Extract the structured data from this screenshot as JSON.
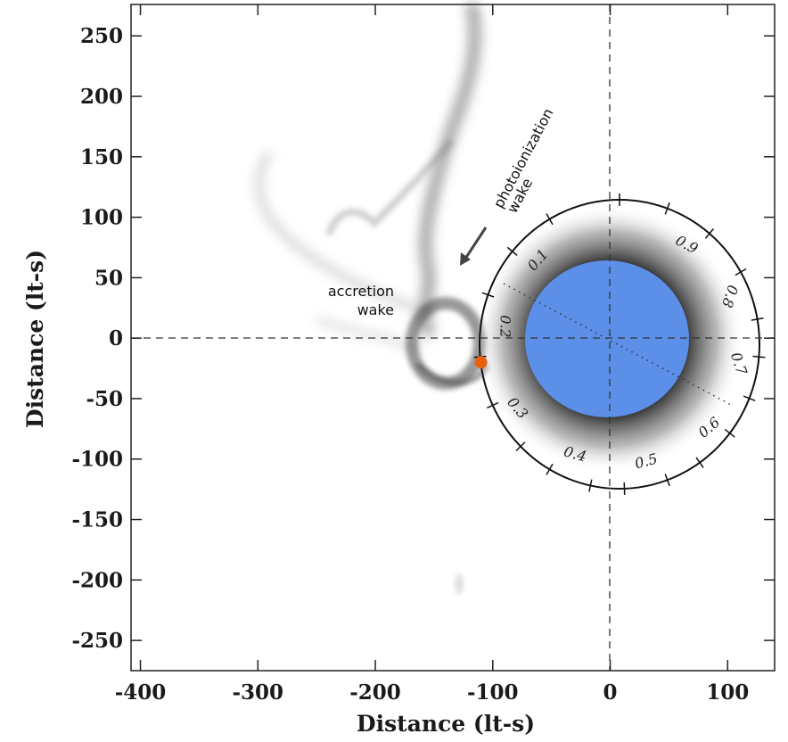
{
  "chart_data": {
    "type": "scatter",
    "x_label": "Distance (lt-s)",
    "y_label": "Distance (lt-s)",
    "x": [
      -110
    ],
    "values": [
      -20
    ],
    "color": "#e8600f",
    "xlim": [
      -408,
      140
    ],
    "ylim": [
      -275,
      276
    ],
    "xticks": [
      -400,
      -300,
      -200,
      -100,
      0,
      100
    ],
    "yticks": [
      -250,
      -200,
      -150,
      -100,
      -50,
      0,
      50,
      100,
      150,
      200,
      250
    ],
    "companion_color": "#5b8fe8",
    "phase_labels": [
      0.1,
      0.2,
      0.3,
      0.4,
      0.5,
      0.6,
      0.7,
      0.8,
      0.9
    ],
    "annotations": {
      "photoionization_wake": [
        "photoionization",
        "wake"
      ],
      "accretion_wake": [
        "accretion",
        "wake"
      ]
    }
  }
}
